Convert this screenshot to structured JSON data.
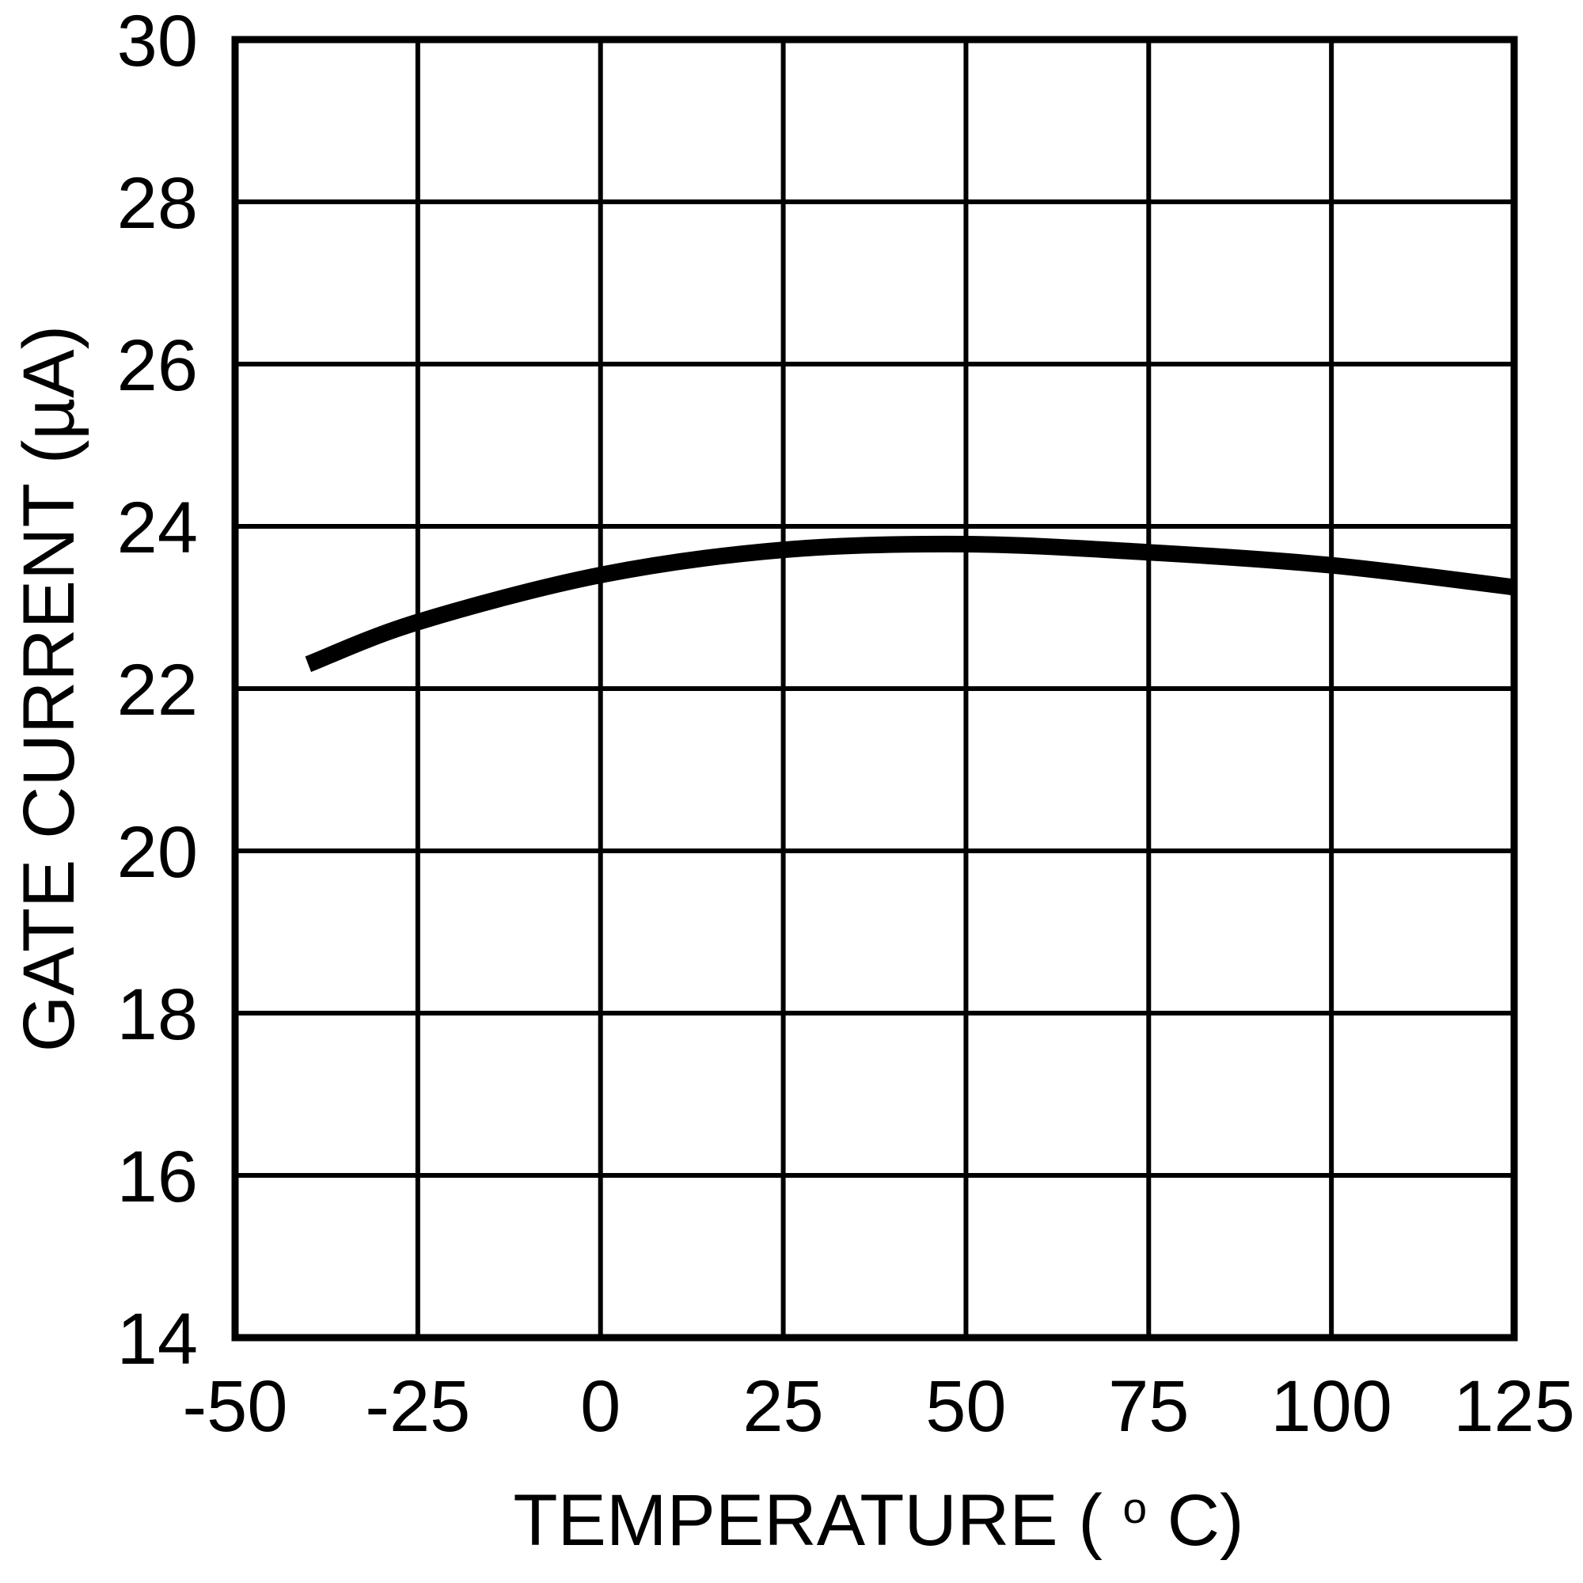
{
  "figure": {
    "background_color": "#ffffff",
    "ink_color": "#000000"
  },
  "chart_data": {
    "type": "line",
    "title": "",
    "xlabel": "TEMPERATURE (°C)",
    "xlabel_parts": {
      "prefix": "TEMPERATURE (",
      "sup": "o",
      "suffix": "C)"
    },
    "ylabel": "GATE CURRENT (µA)",
    "xlim": [
      -50,
      125
    ],
    "ylim": [
      14,
      30
    ],
    "xticks": [
      -50,
      -25,
      0,
      25,
      50,
      75,
      100,
      125
    ],
    "yticks": [
      14,
      16,
      18,
      20,
      22,
      24,
      26,
      28,
      30
    ],
    "grid": true,
    "legend": "none",
    "series": [
      {
        "name": "gate-current-vs-temperature",
        "x": [
          -40,
          -25,
          0,
          25,
          50,
          75,
          100,
          125
        ],
        "y": [
          22.3,
          22.82,
          23.4,
          23.71,
          23.78,
          23.68,
          23.52,
          23.25
        ]
      }
    ]
  }
}
